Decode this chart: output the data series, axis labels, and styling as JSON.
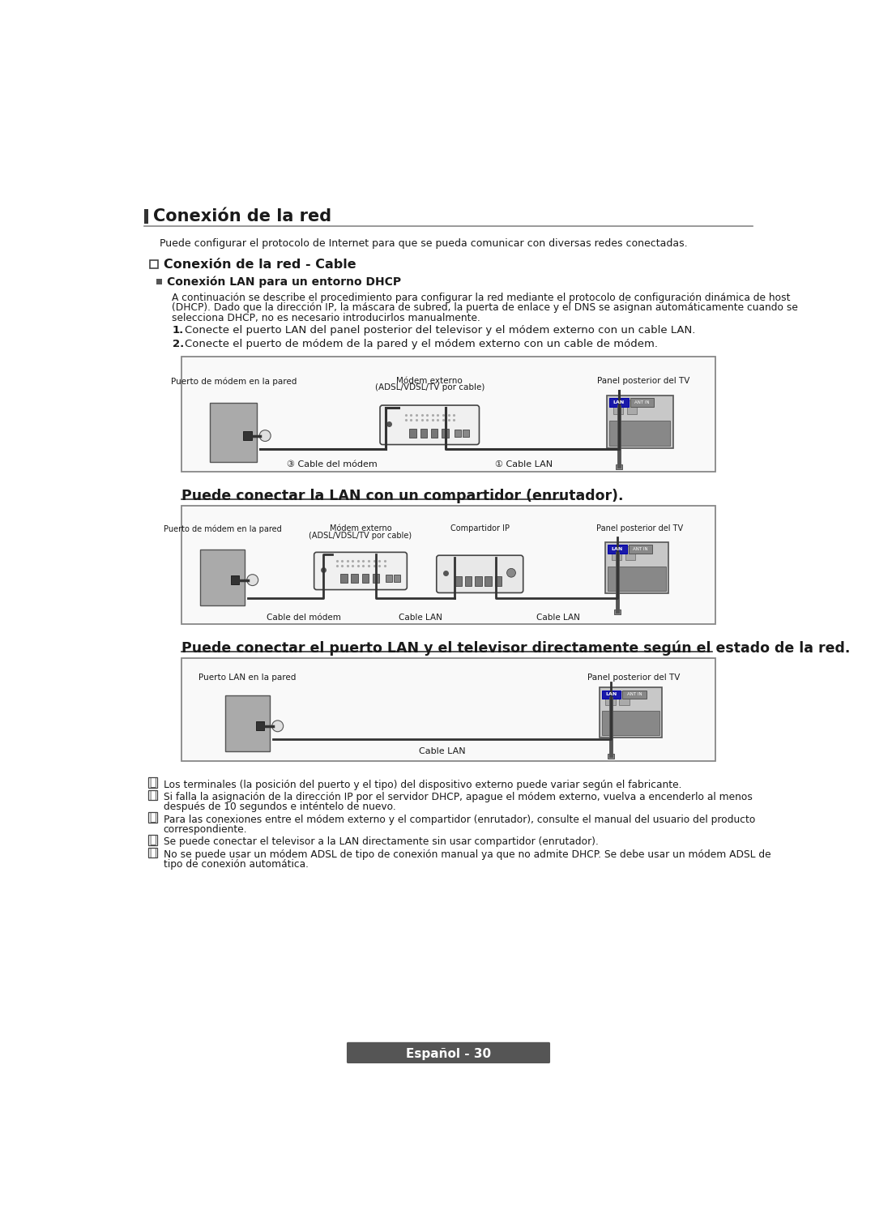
{
  "title": "Conexión de la red",
  "subtitle": "Puede configurar el protocolo de Internet para que se pueda comunicar con diversas redes conectadas.",
  "section1_title": "☐  Conexión de la red - Cable",
  "section1_sub": "Conexión LAN para un entorno DHCP",
  "section1_body_1": "A continuación se describe el procedimiento para configurar la red mediante el protocolo de configuración dinámica de host",
  "section1_body_2": "(DHCP). Dado que la dirección IP, la máscara de subred, la puerta de enlace y el DNS se asignan automáticamente cuando se",
  "section1_body_3": "selecciona DHCP, no es necesario introducirlos manualmente.",
  "step1": "Conecte el puerto LAN del panel posterior del televisor y el módem externo con un cable LAN.",
  "step2": "Conecte el puerto de módem de la pared y el módem externo con un cable de módem.",
  "diag1_label_wall": "Puerto de módem en la pared",
  "diag1_label_modem": "Módem externo",
  "diag1_label_modem2": "(ADSL/VDSL/TV por cable)",
  "diag1_label_tv": "Panel posterior del TV",
  "diag1_cable1": "③ Cable del módem",
  "diag1_cable2": "① Cable LAN",
  "section2_title": "Puede conectar la LAN con un compartidor (enrutador).",
  "diag2_label_wall": "Puerto de módem en la pared",
  "diag2_label_modem": "Módem externo",
  "diag2_label_modem2": "(ADSL/VDSL/TV por cable)",
  "diag2_label_router": "Compartidor IP",
  "diag2_label_tv": "Panel posterior del TV",
  "diag2_cable1": "Cable del módem",
  "diag2_cable2": "Cable LAN",
  "diag2_cable3": "Cable LAN",
  "section3_title": "Puede conectar el puerto LAN y el televisor directamente según el estado de la red.",
  "diag3_label_wall": "Puerto LAN en la pared",
  "diag3_label_tv": "Panel posterior del TV",
  "diag3_cable": "Cable LAN",
  "note1": "Los terminales (la posición del puerto y el tipo) del dispositivo externo puede variar según el fabricante.",
  "note2_1": "Si falla la asignación de la dirección IP por el servidor DHCP, apague el módem externo, vuelva a encenderlo al menos",
  "note2_2": "después de 10 segundos e inténtelo de nuevo.",
  "note3_1": "Para las conexiones entre el módem externo y el compartidor (enrutador), consulte el manual del usuario del producto",
  "note3_2": "correspondiente.",
  "note4": "Se puede conectar el televisor a la LAN directamente sin usar compartidor (enrutador).",
  "note5_1": "No se puede usar un módem ADSL de tipo de conexión manual ya que no admite DHCP. Se debe usar un módem ADSL de",
  "note5_2": "tipo de conexión automática.",
  "footer": "Español - 30",
  "bg_color": "#ffffff",
  "text_color": "#1a1a1a",
  "gray_color": "#888888",
  "dark_color": "#333333",
  "box_color": "#dddddd",
  "lan_blue": "#2222aa"
}
